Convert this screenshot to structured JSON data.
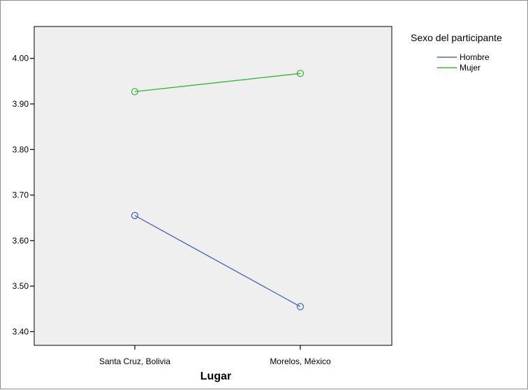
{
  "chart_data": {
    "type": "line",
    "categories": [
      "Santa Cruz, Bolivia",
      "Morelos, México"
    ],
    "series": [
      {
        "name": "Hombre",
        "values": [
          3.655,
          3.455
        ],
        "color": "#4f6db8"
      },
      {
        "name": "Mujer",
        "values": [
          3.927,
          3.967
        ],
        "color": "#3fb83f"
      }
    ],
    "title": "",
    "xlabel": "Lugar",
    "ylabel": "",
    "ylim": [
      3.37,
      4.07
    ],
    "yticks": [
      "3.40",
      "3.50",
      "3.60",
      "3.70",
      "3.80",
      "3.90",
      "4.00"
    ],
    "legend_title": "Sexo del participante",
    "legend_position": "right",
    "grid": false,
    "plot_background": "#efefef"
  }
}
